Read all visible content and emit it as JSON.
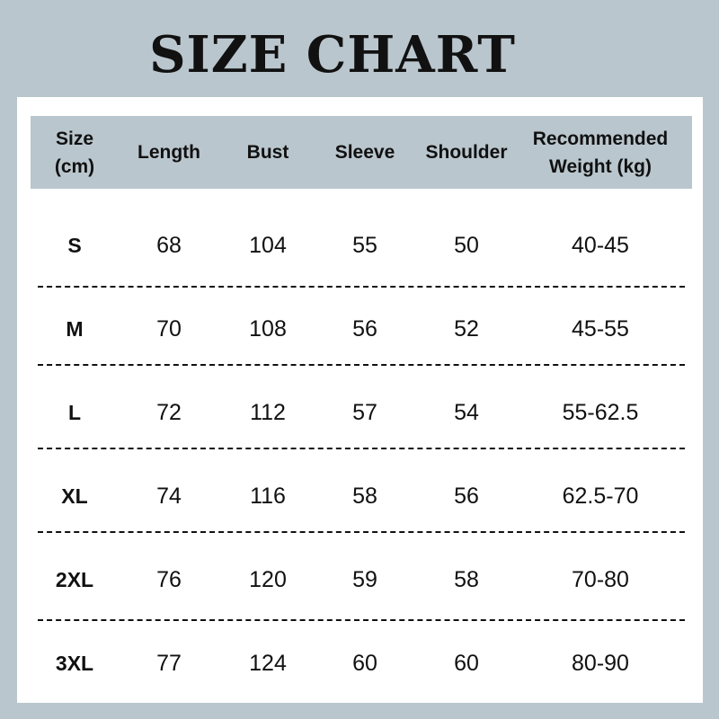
{
  "title": "SIZE CHART",
  "columns": [
    "Size\n(cm)",
    "Length",
    "Bust",
    "Sleeve",
    "Shoulder",
    "Recommended\nWeight (kg)"
  ],
  "rows": [
    [
      "S",
      "68",
      "104",
      "55",
      "50",
      "40-45"
    ],
    [
      "M",
      "70",
      "108",
      "56",
      "52",
      "45-55"
    ],
    [
      "L",
      "72",
      "112",
      "57",
      "54",
      "55-62.5"
    ],
    [
      "XL",
      "74",
      "116",
      "58",
      "56",
      "62.5-70"
    ],
    [
      "2XL",
      "76",
      "120",
      "59",
      "58",
      "70-80"
    ],
    [
      "3XL",
      "77",
      "124",
      "60",
      "60",
      "80-90"
    ]
  ],
  "colors": {
    "background": "#bac6cd",
    "header": "#bac6cd",
    "panel": "#ffffff",
    "text": "#111111"
  }
}
